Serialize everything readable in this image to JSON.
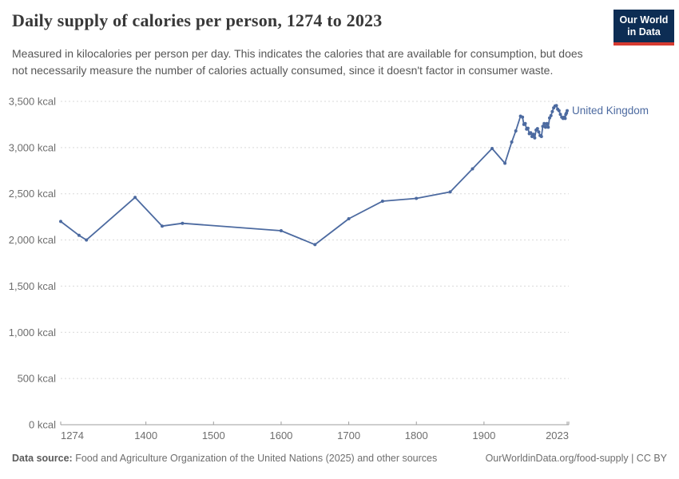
{
  "header": {
    "title": "Daily supply of calories per person, 1274 to 2023",
    "subtitle": "Measured in kilocalories per person per day. This indicates the calories that are available for consumption, but does not necessarily measure the number of calories actually consumed, since it doesn't factor in consumer waste.",
    "logo": {
      "line1": "Our World",
      "line2": "in Data",
      "bg_color": "#0d2d54",
      "accent_color": "#d63a30"
    }
  },
  "chart_data": {
    "type": "line",
    "title": "Daily supply of calories per person, 1274 to 2023",
    "xlabel": "",
    "ylabel": "",
    "xlim": [
      1274,
      2023
    ],
    "ylim": [
      0,
      3500
    ],
    "grid": "horizontal-dashed",
    "legend_position": "end-of-line-label",
    "x_ticks": [
      {
        "value": 1274,
        "label": "1274"
      },
      {
        "value": 1400,
        "label": "1400"
      },
      {
        "value": 1500,
        "label": "1500"
      },
      {
        "value": 1600,
        "label": "1600"
      },
      {
        "value": 1700,
        "label": "1700"
      },
      {
        "value": 1800,
        "label": "1800"
      },
      {
        "value": 1900,
        "label": "1900"
      },
      {
        "value": 2023,
        "label": "2023"
      }
    ],
    "y_ticks": [
      {
        "value": 0,
        "label": "0 kcal"
      },
      {
        "value": 500,
        "label": "500 kcal"
      },
      {
        "value": 1000,
        "label": "1,000 kcal"
      },
      {
        "value": 1500,
        "label": "1,500 kcal"
      },
      {
        "value": 2000,
        "label": "2,000 kcal"
      },
      {
        "value": 2500,
        "label": "2,500 kcal"
      },
      {
        "value": 3000,
        "label": "3,000 kcal"
      },
      {
        "value": 3500,
        "label": "3,500 kcal"
      }
    ],
    "series": [
      {
        "name": "United Kingdom",
        "color": "#4c6aa0",
        "unit": "kcal",
        "points": [
          [
            1274,
            2200
          ],
          [
            1301,
            2050
          ],
          [
            1312,
            2000
          ],
          [
            1384,
            2460
          ],
          [
            1424,
            2150
          ],
          [
            1454,
            2180
          ],
          [
            1600,
            2100
          ],
          [
            1650,
            1950
          ],
          [
            1700,
            2230
          ],
          [
            1750,
            2420
          ],
          [
            1800,
            2450
          ],
          [
            1850,
            2520
          ],
          [
            1883,
            2770
          ],
          [
            1912,
            2990
          ],
          [
            1931,
            2830
          ],
          [
            1941,
            3060
          ],
          [
            1947,
            3180
          ],
          [
            1954,
            3340
          ],
          [
            1957,
            3330
          ],
          [
            1959,
            3250
          ],
          [
            1961,
            3260
          ],
          [
            1963,
            3200
          ],
          [
            1965,
            3210
          ],
          [
            1967,
            3150
          ],
          [
            1969,
            3160
          ],
          [
            1971,
            3120
          ],
          [
            1973,
            3145
          ],
          [
            1975,
            3105
          ],
          [
            1977,
            3190
          ],
          [
            1979,
            3205
          ],
          [
            1981,
            3170
          ],
          [
            1983,
            3130
          ],
          [
            1985,
            3120
          ],
          [
            1987,
            3230
          ],
          [
            1989,
            3260
          ],
          [
            1991,
            3220
          ],
          [
            1993,
            3260
          ],
          [
            1995,
            3220
          ],
          [
            1997,
            3320
          ],
          [
            1999,
            3345
          ],
          [
            2001,
            3390
          ],
          [
            2003,
            3430
          ],
          [
            2005,
            3450
          ],
          [
            2007,
            3455
          ],
          [
            2009,
            3415
          ],
          [
            2011,
            3400
          ],
          [
            2013,
            3360
          ],
          [
            2015,
            3330
          ],
          [
            2017,
            3315
          ],
          [
            2019,
            3330
          ],
          [
            2020,
            3315
          ],
          [
            2021,
            3360
          ],
          [
            2022,
            3375
          ],
          [
            2023,
            3400
          ]
        ]
      }
    ],
    "colors": {
      "gridline": "#d9d9d9",
      "axis": "#9e9e9e",
      "tick_label": "#6e6e6e"
    }
  },
  "footer": {
    "datasource_prefix": "Data source:",
    "datasource_rest": " Food and Agriculture Organization of the United Nations (2025) and other sources",
    "credit": "OurWorldinData.org/food-supply | CC BY"
  }
}
